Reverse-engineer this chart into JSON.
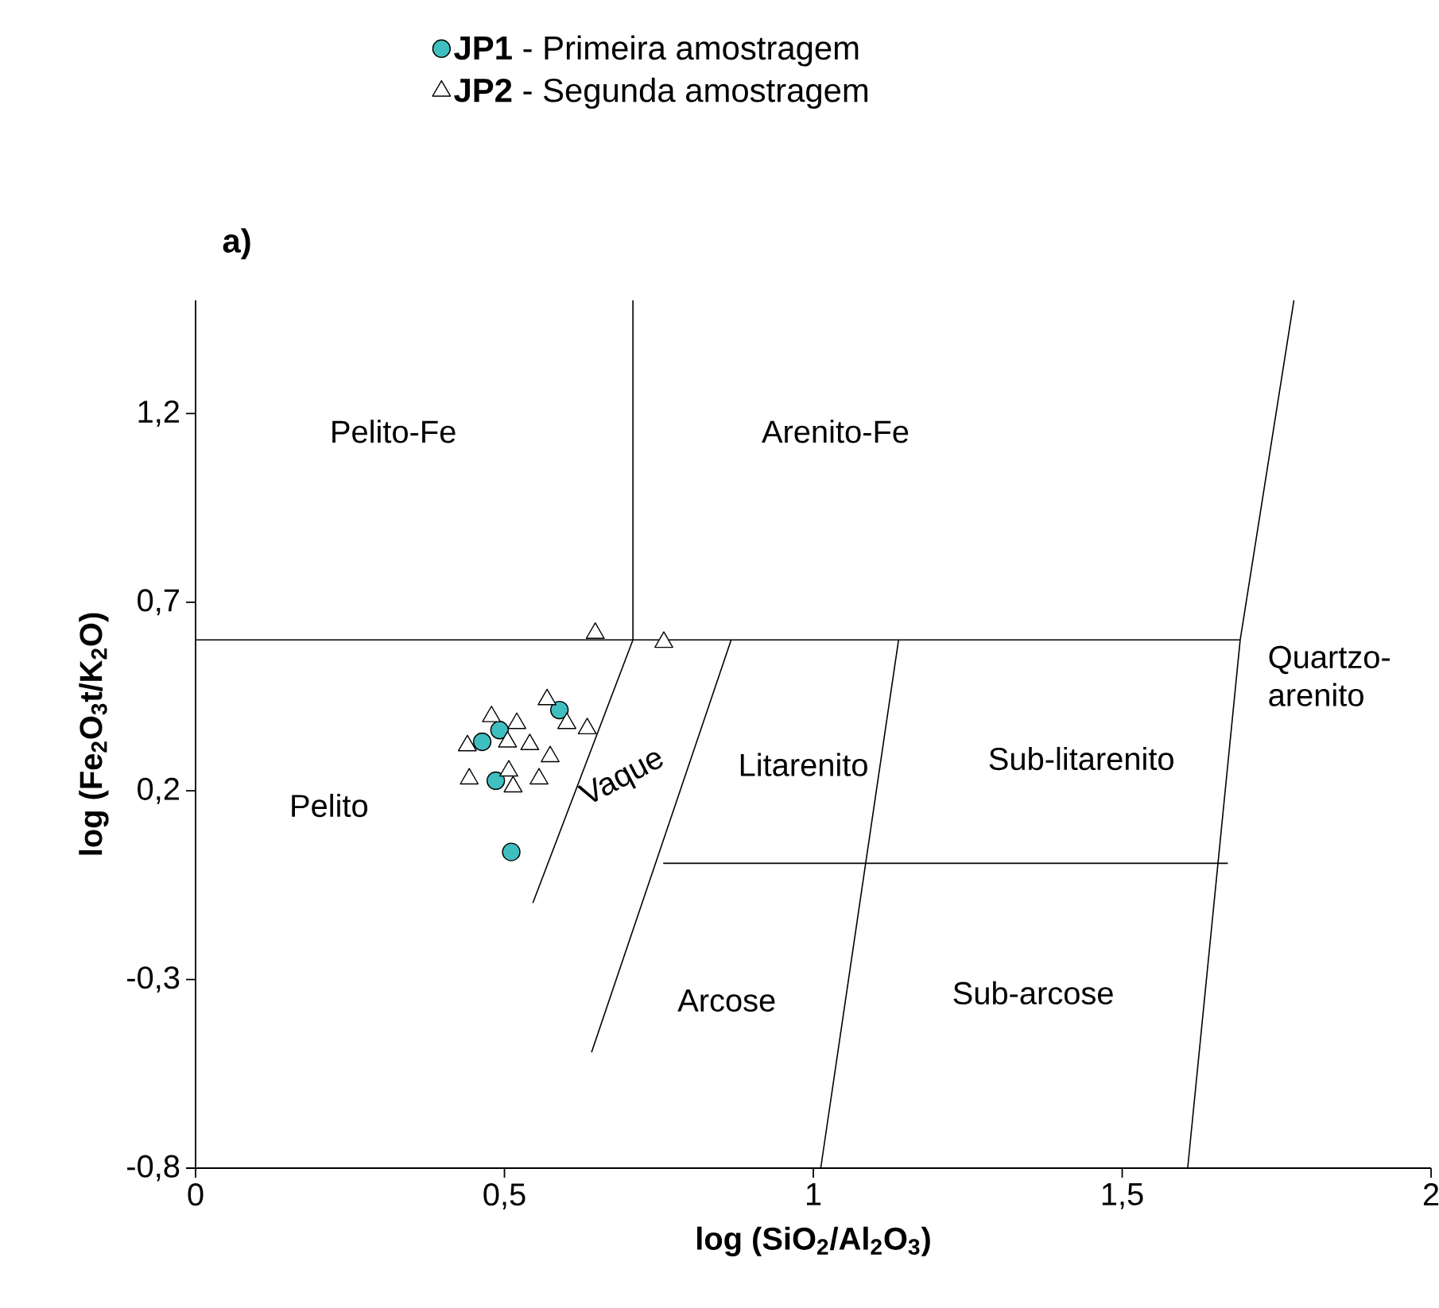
{
  "chart_data": {
    "type": "scatter",
    "title": "a)",
    "xlabel": "**log (SiO$_{2}$/Al$_{2}$O$_{3}$)**",
    "ylabel": "**log (Fe$_{2}$O$_{3}$t/K$_{2}$O)**",
    "xlim": [
      0,
      2
    ],
    "ylim": [
      -0.8,
      1.5
    ],
    "xticks": [
      0,
      {
        "value": 0.5,
        "label": "0,5"
      },
      1,
      {
        "value": 1.5,
        "label": "1,5"
      },
      2
    ],
    "yticks": [
      {
        "value": -0.8,
        "label": "-0,8"
      },
      {
        "value": -0.3,
        "label": "-0,3"
      },
      {
        "value": 0.2,
        "label": "0,2"
      },
      {
        "value": 0.7,
        "label": "0,7"
      },
      {
        "value": 1.2,
        "label": "1,2"
      }
    ],
    "legend": "top",
    "series": [
      {
        "type": "line",
        "color": "#000000",
        "marker": "none",
        "x": [
          0,
          1.691
        ],
        "values": [
          0.6,
          0.6
        ]
      },
      {
        "type": "line",
        "color": "#000000",
        "marker": "none",
        "x": [
          0.708,
          0.708,
          0.546
        ],
        "values": [
          1.5,
          0.6,
          -0.097
        ]
      },
      {
        "type": "line",
        "color": "#000000",
        "marker": "none",
        "x": [
          0.867,
          0.641
        ],
        "values": [
          0.6,
          -0.493
        ]
      },
      {
        "type": "line",
        "color": "#000000",
        "marker": "none",
        "x": [
          0.757,
          1.671
        ],
        "values": [
          0.008,
          0.008
        ]
      },
      {
        "type": "line",
        "color": "#000000",
        "marker": "none",
        "x": [
          1.138,
          1.012
        ],
        "values": [
          0.6,
          -0.8
        ]
      },
      {
        "type": "line",
        "color": "#000000",
        "marker": "none",
        "x": [
          1.778,
          1.691,
          1.606
        ],
        "values": [
          1.5,
          0.6,
          -0.8
        ]
      },
      {
        "name": "**JP1** - Primeira amostragem",
        "color": "#3fbfbf",
        "marker": "circle",
        "x": [
          0.589,
          0.492,
          0.464,
          0.486,
          0.511
        ],
        "values": [
          0.414,
          0.361,
          0.33,
          0.227,
          0.038
        ]
      },
      {
        "name": "**JP2** - Segunda amostragem",
        "color": "#ffffff",
        "marker": "triangle",
        "x": [
          0.647,
          0.758,
          0.569,
          0.479,
          0.52,
          0.601,
          0.634,
          0.44,
          0.505,
          0.541,
          0.574,
          0.443,
          0.507,
          0.556,
          0.514
        ],
        "values": [
          0.618,
          0.594,
          0.442,
          0.397,
          0.379,
          0.379,
          0.365,
          0.32,
          0.33,
          0.323,
          0.291,
          0.232,
          0.253,
          0.232,
          0.211
        ]
      }
    ],
    "annotations": [
      "Pelito-Fe",
      "Arenito-Fe",
      "Quartzo-arenito",
      "Pelito",
      "Vaque",
      "Litarenito",
      "Sub-litarenito",
      "Arcose",
      "Sub-arcose"
    ]
  }
}
